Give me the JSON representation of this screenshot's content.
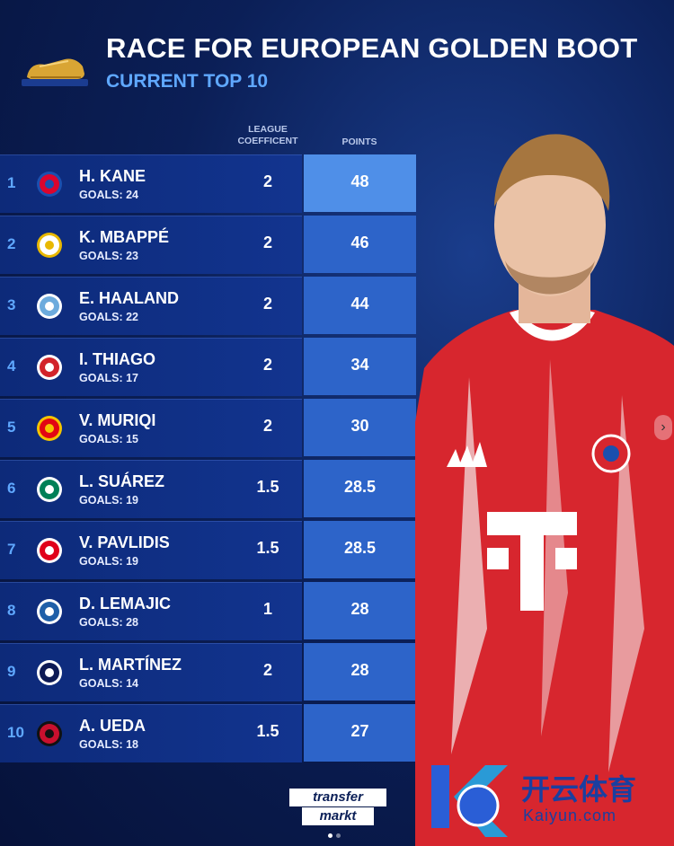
{
  "header": {
    "title": "RACE FOR EUROPEAN GOLDEN BOOT",
    "subtitle": "CURRENT TOP 10"
  },
  "columns": {
    "coefficient_label": "LEAGUE COEFFICENT",
    "points_label": "POINTS"
  },
  "rows": [
    {
      "rank": "1",
      "name": "H. KANE",
      "goals": "GOALS: 24",
      "coefficient": "2",
      "points": "48",
      "crest": "bayern-crest-icon"
    },
    {
      "rank": "2",
      "name": "K. MBAPPÉ",
      "goals": "GOALS: 23",
      "coefficient": "2",
      "points": "46",
      "crest": "real-madrid-crest-icon"
    },
    {
      "rank": "3",
      "name": "E. HAALAND",
      "goals": "GOALS: 22",
      "coefficient": "2",
      "points": "44",
      "crest": "man-city-crest-icon"
    },
    {
      "rank": "4",
      "name": "I. THIAGO",
      "goals": "GOALS: 17",
      "coefficient": "2",
      "points": "34",
      "crest": "brentford-crest-icon"
    },
    {
      "rank": "5",
      "name": "V. MURIQI",
      "goals": "GOALS: 15",
      "coefficient": "2",
      "points": "30",
      "crest": "mallorca-crest-icon"
    },
    {
      "rank": "6",
      "name": "L. SUÁREZ",
      "goals": "GOALS: 19",
      "coefficient": "1.5",
      "points": "28.5",
      "crest": "sporting-crest-icon"
    },
    {
      "rank": "7",
      "name": "V. PAVLIDIS",
      "goals": "GOALS: 19",
      "coefficient": "1.5",
      "points": "28.5",
      "crest": "benfica-crest-icon"
    },
    {
      "rank": "8",
      "name": "D. LEMAJIC",
      "goals": "GOALS: 28",
      "coefficient": "1",
      "points": "28",
      "crest": "riga-crest-icon"
    },
    {
      "rank": "9",
      "name": "L. MARTÍNEZ",
      "goals": "GOALS: 14",
      "coefficient": "2",
      "points": "28",
      "crest": "inter-crest-icon"
    },
    {
      "rank": "10",
      "name": "A. UEDA",
      "goals": "GOALS: 18",
      "coefficient": "1.5",
      "points": "27",
      "crest": "feyenoord-crest-icon"
    }
  ],
  "logo": {
    "line1": "transfer",
    "line2": "markt"
  },
  "watermark": {
    "cn": "开云体育",
    "en": "Kaiyun.com"
  },
  "colors": {
    "accent": "#5fa8ff",
    "points_cell": "#2d64c9",
    "points_cell_top": "#4f8fe8",
    "row_bg": "#0d2a79",
    "jersey_red": "#d7262e"
  }
}
